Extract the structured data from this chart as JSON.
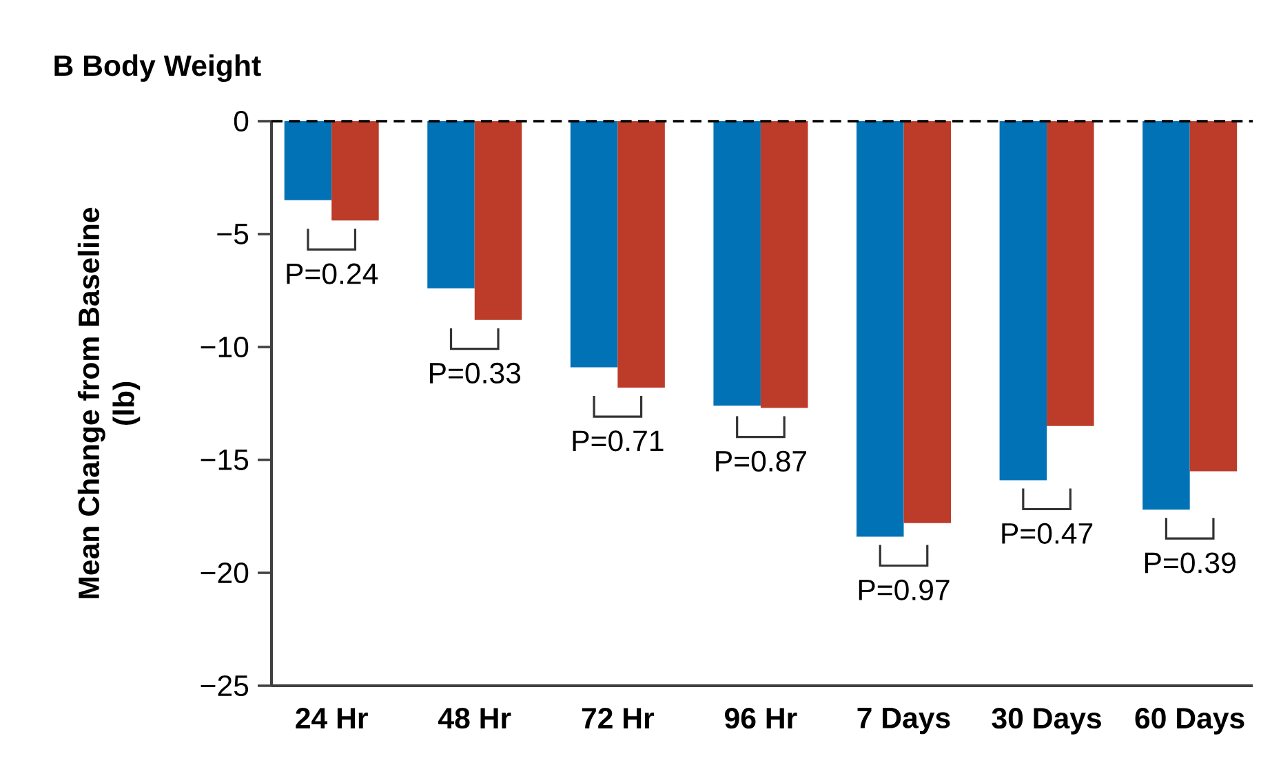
{
  "chart_data": {
    "type": "bar",
    "title": "B Body Weight",
    "ylabel": "Mean Change from Baseline (lb)",
    "categories": [
      "24 Hr",
      "48 Hr",
      "72 Hr",
      "96 Hr",
      "7 Days",
      "30 Days",
      "60 Days"
    ],
    "series": [
      {
        "color": "#0072b5",
        "values": [
          -3.5,
          -7.4,
          -10.9,
          -12.6,
          -18.4,
          -15.9,
          -17.2
        ]
      },
      {
        "color": "#bc3c29",
        "values": [
          -4.4,
          -8.8,
          -11.8,
          -12.7,
          -17.8,
          -13.5,
          -15.5
        ]
      }
    ],
    "ylim": [
      -25,
      0
    ],
    "yticks": [
      {
        "value": -25,
        "label": "−25"
      },
      {
        "value": -20,
        "label": "−20"
      },
      {
        "value": -15,
        "label": "−15"
      },
      {
        "value": -10,
        "label": "−10"
      },
      {
        "value": -5,
        "label": "−5"
      },
      0
    ],
    "ref_lines": [
      {
        "axis": "y",
        "value": 0,
        "line_style": "dashed",
        "color": "#000000"
      }
    ],
    "annotations": [
      "P=0.24",
      "P=0.33",
      "P=0.71",
      "P=0.87",
      "P=0.97",
      "P=0.47",
      "P=0.39"
    ]
  }
}
